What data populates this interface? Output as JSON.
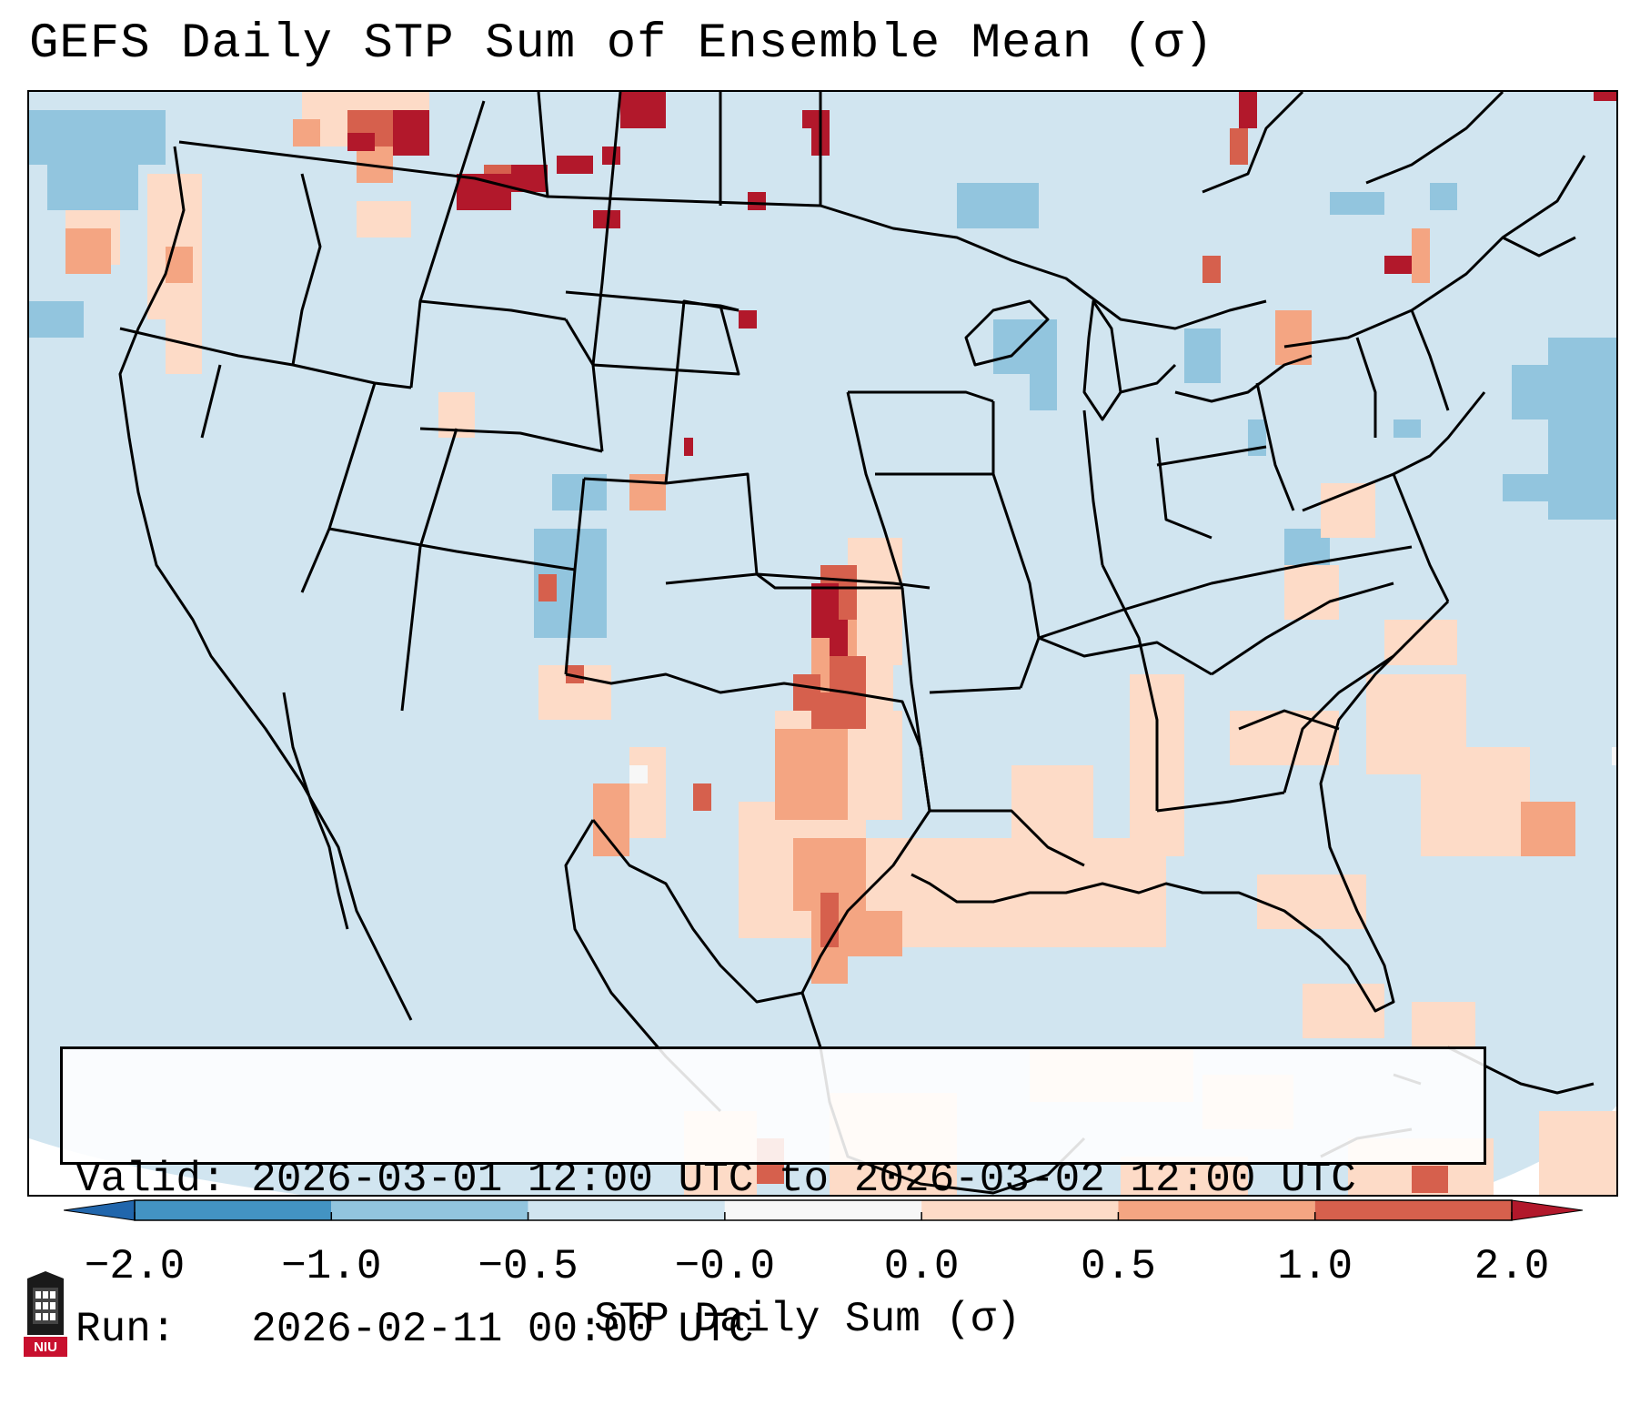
{
  "title": "GEFS Daily STP Sum of Ensemble Mean (σ)",
  "info": {
    "valid_label": "Valid:",
    "valid_value": "2026-03-01 12:00 UTC to 2026-03-02 12:00 UTC",
    "run_label": "Run:",
    "run_value": "2026-02-11 00:00 UTC"
  },
  "colorbar": {
    "label": "STP Daily Sum (σ)",
    "ticks": [
      "−2.0",
      "−1.0",
      "−0.5",
      "−0.0",
      "0.0",
      "0.5",
      "1.0",
      "2.0"
    ],
    "bins": [
      {
        "from": "<-2.0",
        "color": "#2166ac"
      },
      {
        "from": "-2.0",
        "to": "-1.0",
        "color": "#4393c3"
      },
      {
        "from": "-1.0",
        "to": "-0.5",
        "color": "#92c5de"
      },
      {
        "from": "-0.5",
        "to": "-0.0",
        "color": "#d1e5f0"
      },
      {
        "from": "-0.0",
        "to": "0.0",
        "color": "#f7f7f7"
      },
      {
        "from": "0.0",
        "to": "0.5",
        "color": "#fddbc7"
      },
      {
        "from": "0.5",
        "to": "1.0",
        "color": "#f4a582"
      },
      {
        "from": "1.0",
        "to": "2.0",
        "color": "#d6604d"
      },
      {
        "from": ">2.0",
        "color": "#b2182b"
      }
    ]
  },
  "logo": {
    "text": "NIU",
    "icon": "university-tower-logo"
  },
  "colors": {
    "background_field": "#d1e5f0",
    "border": "#000000"
  }
}
